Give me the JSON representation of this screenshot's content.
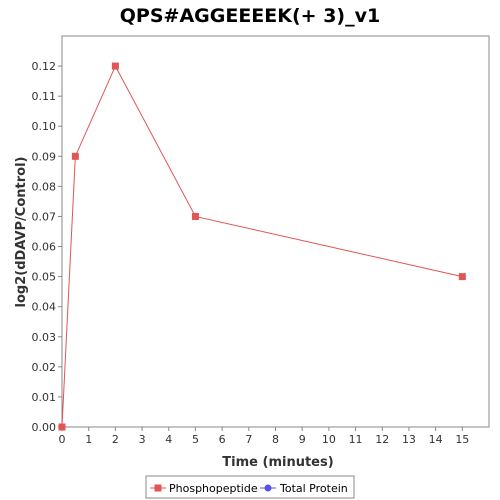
{
  "chart_data": {
    "type": "line",
    "title": "QPS#AGGEEEEK(+ 3)_v1",
    "xlabel": "Time (minutes)",
    "ylabel": "log2(dDAVP/Control)",
    "xlim": [
      0,
      16
    ],
    "ylim": [
      0,
      0.13
    ],
    "x_ticks": [
      0,
      1,
      2,
      3,
      4,
      5,
      6,
      7,
      8,
      9,
      10,
      11,
      12,
      13,
      14,
      15
    ],
    "y_ticks": [
      0.0,
      0.01,
      0.02,
      0.03,
      0.04,
      0.05,
      0.06,
      0.07,
      0.08,
      0.09,
      0.1,
      0.11,
      0.12
    ],
    "y_tick_labels": [
      "0.00",
      "0.01",
      "0.02",
      "0.03",
      "0.04",
      "0.05",
      "0.06",
      "0.07",
      "0.08",
      "0.09",
      "0.10",
      "0.11",
      "0.12"
    ],
    "grid": false,
    "legend_position": "bottom",
    "series": [
      {
        "name": "Phosphopeptide",
        "color": "#e05555",
        "marker": "square",
        "x": [
          0,
          0.5,
          2,
          5,
          15
        ],
        "y": [
          0.0,
          0.09,
          0.12,
          0.07,
          0.05
        ]
      },
      {
        "name": "Total Protein",
        "color": "#5555e0",
        "marker": "circle",
        "x": [],
        "y": []
      }
    ]
  }
}
